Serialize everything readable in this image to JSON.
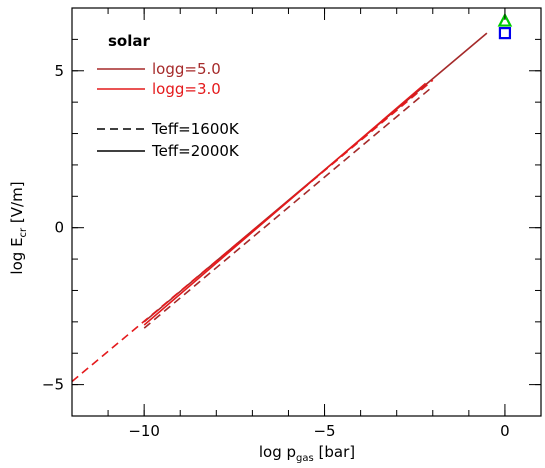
{
  "chart_data": {
    "type": "line",
    "xlabel": {
      "prefix": "log p",
      "sub": "gas",
      "suffix": " [bar]"
    },
    "ylabel": {
      "prefix": "log E",
      "sub": "cr",
      "suffix": " [V/m]"
    },
    "xlim": [
      -12,
      1
    ],
    "ylim": [
      -6,
      7
    ],
    "xticks": [
      {
        "value": -10,
        "label": "−10"
      },
      {
        "value": -5,
        "label": "−5"
      },
      {
        "value": 0,
        "label": "0"
      }
    ],
    "yticks": [
      {
        "value": -5,
        "label": "−5"
      },
      {
        "value": 0,
        "label": "0"
      },
      {
        "value": 5,
        "label": "5"
      }
    ],
    "x_minor_step": 1,
    "y_minor_step": 1,
    "legend": {
      "title": "solar",
      "entries": [
        {
          "label": "logg=5.0",
          "color": "#a52a2a",
          "style": "solid"
        },
        {
          "label": "logg=3.0",
          "color": "#e41a1c",
          "style": "solid"
        },
        {
          "label": "Teff=1600K",
          "color": "#000000",
          "style": "dashed"
        },
        {
          "label": "Teff=2000K",
          "color": "#000000",
          "style": "solid"
        }
      ]
    },
    "series": [
      {
        "color": "#a52a2a",
        "style": "solid",
        "x": [
          -10,
          -0.5
        ],
        "y": [
          -3.0,
          6.2
        ]
      },
      {
        "color": "#e41a1c",
        "style": "solid",
        "x": [
          -10,
          -2.2
        ],
        "y": [
          -3.1,
          4.6
        ]
      },
      {
        "color": "#a52a2a",
        "style": "dashed",
        "x": [
          -10,
          -2.0
        ],
        "y": [
          -3.2,
          4.5
        ]
      },
      {
        "color": "#e41a1c",
        "style": "dashed",
        "x": [
          -12,
          -2.0
        ],
        "y": [
          -4.9,
          4.7
        ]
      }
    ],
    "markers": [
      {
        "shape": "triangle",
        "color": "#00cc00",
        "x": 0,
        "y": 6.6
      },
      {
        "shape": "square",
        "color": "#0000ee",
        "x": 0,
        "y": 6.2
      }
    ]
  }
}
